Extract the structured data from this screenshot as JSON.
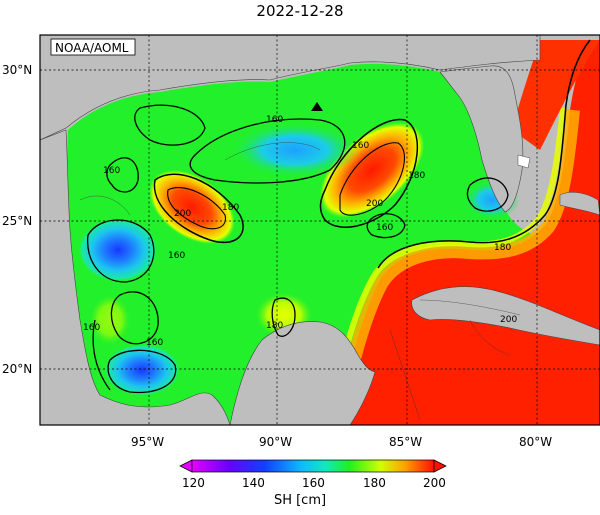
{
  "title": "2022-12-28",
  "credit": "NOAA/AOML",
  "lat_labels": [
    "30°N",
    "25°N",
    "20°N"
  ],
  "lon_labels": [
    "95°W",
    "90°W",
    "85°W",
    "80°W"
  ],
  "colorbar": {
    "ticks": [
      "120",
      "140",
      "160",
      "180",
      "200"
    ],
    "unit_label": "SH [cm]",
    "range": [
      120,
      200
    ]
  },
  "contour_labels": [
    "160",
    "160",
    "160",
    "160",
    "160",
    "160",
    "160",
    "180",
    "180",
    "180",
    "180",
    "200",
    "200",
    "200"
  ],
  "colors": {
    "land": "#bebebe",
    "ocean_base": "#22f02a",
    "warm": "#ff1800",
    "low": "#1a48ff"
  },
  "marker": "triangle-marker"
}
